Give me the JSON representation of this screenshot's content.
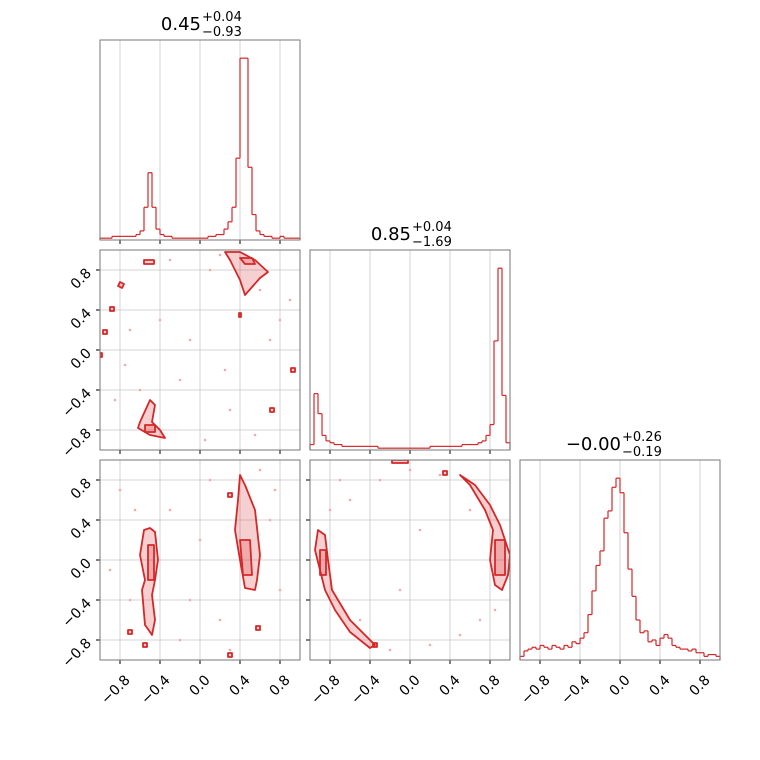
{
  "chart_data": {
    "type": "corner",
    "color": "#d62728",
    "point_color": "#f4a9ad",
    "grid": true,
    "xlim": [
      -1,
      1
    ],
    "ylim": [
      -1,
      1
    ],
    "xticks": [
      {
        "value": -0.8,
        "label": "−0.8"
      },
      {
        "value": -0.4,
        "label": "−0.4"
      },
      {
        "value": 0,
        "label": "0.0"
      },
      {
        "value": 0.4,
        "label": "0.4"
      },
      {
        "value": 0.8,
        "label": "0.8"
      }
    ],
    "yticks": [
      {
        "value": -0.8,
        "label": "−0.8"
      },
      {
        "value": -0.4,
        "label": "−0.4"
      },
      {
        "value": 0,
        "label": "0.0"
      },
      {
        "value": 0.4,
        "label": "0.4"
      },
      {
        "value": 0.8,
        "label": "0.8"
      }
    ],
    "bins": [
      -1,
      -0.96,
      -0.92,
      -0.88,
      -0.84,
      -0.8,
      -0.76,
      -0.72,
      -0.68,
      -0.64,
      -0.6,
      -0.56,
      -0.52,
      -0.48,
      -0.44,
      -0.4,
      -0.36,
      -0.32,
      -0.28,
      -0.24,
      -0.2,
      -0.16,
      -0.12,
      -0.08,
      -0.04,
      0,
      0.04,
      0.08,
      0.12,
      0.16,
      0.2,
      0.24,
      0.28,
      0.32,
      0.36,
      0.4,
      0.44,
      0.48,
      0.52,
      0.56,
      0.6,
      0.64,
      0.68,
      0.72,
      0.76,
      0.8,
      0.84,
      0.88,
      0.92,
      0.96,
      1
    ],
    "histograms": [
      {
        "title": {
          "value": "0.45",
          "plus": "+0.04",
          "minus": "−0.93"
        },
        "ylim": [
          0,
          110
        ],
        "counts": [
          1,
          1,
          1,
          2,
          2,
          2,
          2,
          2,
          2,
          3,
          5,
          18,
          37,
          18,
          6,
          3,
          2,
          2,
          1,
          1,
          1,
          1,
          1,
          1,
          1,
          1,
          1,
          2,
          2,
          3,
          3,
          6,
          10,
          18,
          45,
          100,
          100,
          40,
          14,
          5,
          3,
          2,
          2,
          1,
          1,
          2,
          1,
          1,
          1,
          1
        ]
      },
      {
        "title": {
          "value": "0.85",
          "plus": "+0.04",
          "minus": "−1.69"
        },
        "ylim": [
          0,
          110
        ],
        "counts": [
          3,
          31,
          20,
          8,
          5,
          4,
          3,
          3,
          2,
          2,
          2,
          2,
          2,
          2,
          2,
          2,
          2,
          1,
          1,
          1,
          1,
          1,
          1,
          1,
          1,
          1,
          1,
          1,
          1,
          1,
          2,
          2,
          2,
          2,
          2,
          2,
          2,
          2,
          3,
          3,
          3,
          3,
          4,
          5,
          8,
          14,
          60,
          100,
          30,
          4
        ]
      },
      {
        "title": {
          "value": "−0.00",
          "plus": "+0.26",
          "minus": "−0.19"
        },
        "ylim": [
          0,
          110
        ],
        "counts": [
          2,
          5,
          6,
          7,
          6,
          8,
          7,
          6,
          8,
          7,
          6,
          8,
          7,
          10,
          9,
          12,
          15,
          25,
          38,
          52,
          60,
          78,
          82,
          95,
          100,
          92,
          70,
          50,
          35,
          22,
          15,
          16,
          10,
          11,
          8,
          12,
          14,
          12,
          8,
          7,
          6,
          6,
          5,
          6,
          4,
          4,
          2,
          3,
          3,
          2
        ]
      }
    ],
    "panels": [
      {
        "points": {
          "x": [
            -0.3,
            0.1,
            0.6,
            0.8,
            -0.7,
            -0.2,
            0.3,
            0.7,
            -0.6,
            0.2,
            -0.85,
            0.55,
            0.05,
            -0.4,
            0.9,
            -0.1,
            0.25,
            -0.75
          ],
          "y": [
            0.9,
            0.8,
            0.6,
            0.3,
            0.2,
            -0.3,
            -0.6,
            0.1,
            -0.4,
            0.95,
            -0.5,
            -0.85,
            -0.9,
            0.3,
            0.5,
            0.1,
            -0.2,
            -0.15
          ]
        },
        "contours": [
          {
            "x": [
              0.25,
              0.4,
              0.55,
              0.68,
              0.6,
              0.45,
              0.4,
              0.35,
              0.3
            ],
            "y": [
              0.98,
              0.98,
              0.9,
              0.78,
              0.72,
              0.55,
              0.7,
              0.8,
              0.9
            ]
          },
          {
            "x": [
              0.4,
              0.52,
              0.55,
              0.45
            ],
            "y": [
              0.92,
              0.92,
              0.86,
              0.86
            ]
          },
          {
            "x": [
              -0.6,
              -0.5,
              -0.45,
              -0.48,
              -0.4,
              -0.35,
              -0.5,
              -0.62
            ],
            "y": [
              -0.72,
              -0.5,
              -0.55,
              -0.72,
              -0.8,
              -0.88,
              -0.85,
              -0.78
            ]
          },
          {
            "x": [
              -0.55,
              -0.45,
              -0.45,
              -0.55
            ],
            "y": [
              -0.75,
              -0.75,
              -0.82,
              -0.82
            ]
          },
          {
            "x": [
              -0.56,
              -0.46,
              -0.46,
              -0.56
            ],
            "y": [
              0.9,
              0.9,
              0.86,
              0.86
            ]
          },
          {
            "x": [
              -0.8,
              -0.76,
              -0.78,
              -0.82
            ],
            "y": [
              0.68,
              0.66,
              0.62,
              0.64
            ]
          },
          {
            "x": [
              -0.9,
              -0.86,
              -0.86,
              -0.9
            ],
            "y": [
              0.43,
              0.43,
              0.39,
              0.39
            ]
          },
          {
            "x": [
              -0.97,
              -0.93,
              -0.93,
              -0.97
            ],
            "y": [
              0.2,
              0.2,
              0.16,
              0.16
            ]
          },
          {
            "x": [
              -1,
              -0.98,
              -0.98,
              -1
            ],
            "y": [
              -0.03,
              -0.03,
              -0.07,
              -0.07
            ]
          },
          {
            "x": [
              0.91,
              0.95,
              0.95,
              0.91
            ],
            "y": [
              -0.18,
              -0.18,
              -0.22,
              -0.22
            ]
          },
          {
            "x": [
              0.7,
              0.74,
              0.74,
              0.7
            ],
            "y": [
              -0.58,
              -0.58,
              -0.62,
              -0.62
            ]
          },
          {
            "x": [
              0.39,
              0.41,
              0.41,
              0.39
            ],
            "y": [
              0.37,
              0.37,
              0.33,
              0.33
            ]
          }
        ]
      },
      {
        "points": {
          "x": [
            -0.8,
            -0.7,
            -0.3,
            0.1,
            0.2,
            0.7,
            0.8,
            -0.2,
            0.0,
            0.6,
            -0.9,
            0.3,
            -0.65,
            0.75,
            -0.1
          ],
          "y": [
            0.7,
            -0.4,
            0.5,
            0.8,
            -0.6,
            0.4,
            -0.3,
            -0.8,
            0.2,
            0.9,
            -0.1,
            -0.9,
            0.5,
            0.7,
            -0.4
          ]
        },
        "contours": [
          {
            "x": [
              -0.5,
              -0.45,
              -0.42,
              -0.45,
              -0.48,
              -0.45,
              -0.48,
              -0.5,
              -0.55,
              -0.58,
              -0.55,
              -0.6,
              -0.56
            ],
            "y": [
              0.32,
              0.28,
              0.0,
              -0.2,
              -0.35,
              -0.6,
              -0.75,
              -0.72,
              -0.65,
              -0.3,
              -0.2,
              0.05,
              0.3
            ]
          },
          {
            "x": [
              -0.52,
              -0.46,
              -0.46,
              -0.52
            ],
            "y": [
              0.15,
              0.15,
              -0.2,
              -0.2
            ]
          },
          {
            "x": [
              0.4,
              0.45,
              0.55,
              0.6,
              0.57,
              0.55,
              0.45,
              0.4,
              0.35,
              0.38
            ],
            "y": [
              0.85,
              0.75,
              0.5,
              0.05,
              -0.2,
              -0.3,
              -0.28,
              0.0,
              0.3,
              0.6
            ]
          },
          {
            "x": [
              0.4,
              0.5,
              0.52,
              0.43
            ],
            "y": [
              0.2,
              0.2,
              -0.15,
              -0.15
            ]
          },
          {
            "x": [
              0.28,
              0.32,
              0.32,
              0.28
            ],
            "y": [
              -0.93,
              -0.93,
              -0.97,
              -0.97
            ]
          },
          {
            "x": [
              0.56,
              0.6,
              0.6,
              0.56
            ],
            "y": [
              -0.66,
              -0.66,
              -0.7,
              -0.7
            ]
          },
          {
            "x": [
              -0.72,
              -0.68,
              -0.68,
              -0.72
            ],
            "y": [
              -0.7,
              -0.7,
              -0.74,
              -0.74
            ]
          },
          {
            "x": [
              0.28,
              0.32,
              0.32,
              0.28
            ],
            "y": [
              0.67,
              0.67,
              0.63,
              0.63
            ]
          },
          {
            "x": [
              -0.57,
              -0.53,
              -0.53,
              -0.57
            ],
            "y": [
              -0.83,
              -0.83,
              -0.87,
              -0.87
            ]
          }
        ]
      },
      {
        "points": {
          "x": [
            -0.6,
            -0.3,
            0.0,
            0.3,
            0.6,
            -0.8,
            0.7,
            -0.2,
            0.2,
            -0.5,
            0.5,
            0.1,
            -0.1,
            0.85,
            -0.7
          ],
          "y": [
            0.6,
            0.8,
            0.9,
            0.85,
            0.5,
            0.5,
            -0.6,
            -0.9,
            -0.85,
            -0.6,
            -0.75,
            0.3,
            -0.3,
            -0.5,
            0.8
          ]
        },
        "contours": [
          {
            "x": [
              -0.92,
              -0.85,
              -0.82,
              -0.78,
              -0.6,
              -0.45,
              -0.35,
              -0.4,
              -0.6,
              -0.75,
              -0.85,
              -0.9,
              -0.95
            ],
            "y": [
              0.3,
              0.25,
              0.0,
              -0.3,
              -0.6,
              -0.75,
              -0.85,
              -0.88,
              -0.72,
              -0.5,
              -0.3,
              -0.1,
              0.1
            ]
          },
          {
            "x": [
              -0.9,
              -0.84,
              -0.84,
              -0.9
            ],
            "y": [
              0.1,
              0.1,
              -0.15,
              -0.15
            ]
          },
          {
            "x": [
              0.5,
              0.65,
              0.8,
              0.9,
              1.0,
              0.98,
              0.92,
              0.85,
              0.8,
              0.83,
              0.75,
              0.6
            ],
            "y": [
              0.85,
              0.75,
              0.55,
              0.35,
              0.05,
              -0.15,
              -0.3,
              -0.25,
              0.0,
              0.3,
              0.5,
              0.75
            ]
          },
          {
            "x": [
              0.85,
              0.95,
              0.95,
              0.85
            ],
            "y": [
              0.2,
              0.2,
              -0.15,
              -0.15
            ]
          },
          {
            "x": [
              -0.18,
              -0.02,
              -0.02,
              -0.18
            ],
            "y": [
              1,
              1,
              0.97,
              0.97
            ]
          },
          {
            "x": [
              -0.37,
              -0.33,
              -0.33,
              -0.37
            ],
            "y": [
              -0.83,
              -0.83,
              -0.87,
              -0.87
            ]
          },
          {
            "x": [
              0.33,
              0.37,
              0.37,
              0.33
            ],
            "y": [
              0.89,
              0.89,
              0.85,
              0.85
            ]
          }
        ]
      }
    ]
  }
}
